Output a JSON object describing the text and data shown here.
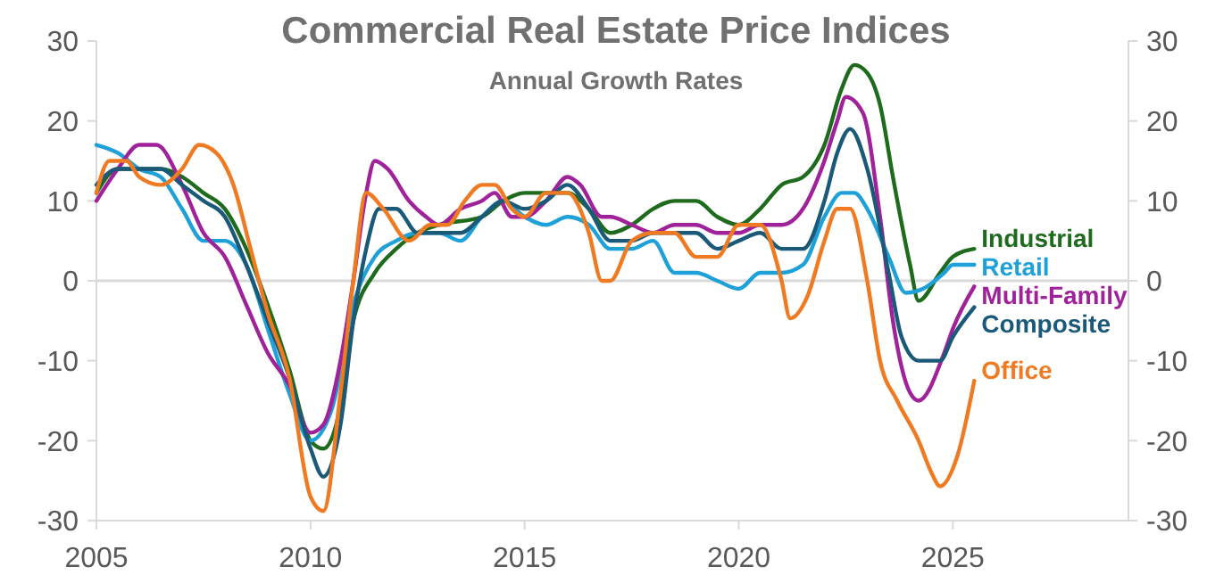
{
  "chart_data": {
    "type": "line",
    "title": "Commercial Real Estate Price Indices",
    "subtitle": "Annual Growth Rates",
    "xlim": [
      2005,
      2029.1
    ],
    "xticks": [
      2005,
      2010,
      2015,
      2020,
      2025
    ],
    "ylim": [
      -30,
      30
    ],
    "yticks": [
      -30,
      -20,
      -10,
      0,
      10,
      20,
      30
    ],
    "y2lim": [
      -30,
      30
    ],
    "y2ticks": [
      -30,
      -20,
      -10,
      0,
      10,
      20,
      30
    ],
    "ref_lines": [
      {
        "axis": "y",
        "value": 0,
        "color": "#d9d9d9"
      }
    ],
    "line_style": "solid",
    "marker": "none",
    "grid": false,
    "series": [
      {
        "name": "Industrial",
        "color": "#1e6b1e",
        "x": [
          2005,
          2005.5,
          2006,
          2006.5,
          2007,
          2007.5,
          2008,
          2008.5,
          2009,
          2009.5,
          2010,
          2010.3,
          2010.6,
          2011,
          2011.5,
          2012,
          2012.5,
          2013,
          2014,
          2014.5,
          2015,
          2015.5,
          2016,
          2016.5,
          2017,
          2017.5,
          2018,
          2018.5,
          2019,
          2019.5,
          2020,
          2020.5,
          2021,
          2021.5,
          2022,
          2022.4,
          2022.7,
          2023,
          2023.3,
          2023.6,
          2024,
          2024.2,
          2024.7,
          2025,
          2025.5
        ],
        "values": [
          11,
          14,
          14,
          14,
          13,
          11,
          9,
          4,
          -3,
          -11,
          -20,
          -21,
          -18,
          -5,
          1,
          4,
          6,
          7,
          8,
          10,
          11,
          11,
          11,
          9,
          6,
          7,
          9,
          10,
          10,
          8,
          7,
          9,
          12,
          13,
          17,
          24,
          27,
          26,
          22,
          13,
          2,
          -2.5,
          1,
          3,
          4
        ]
      },
      {
        "name": "Retail",
        "color": "#1ea0d8",
        "x": [
          2005,
          2005.5,
          2006,
          2006.5,
          2007,
          2007.5,
          2008,
          2008.5,
          2009,
          2009.5,
          2010,
          2010.5,
          2011,
          2011.5,
          2012,
          2012.5,
          2013,
          2013.5,
          2014,
          2014.5,
          2015,
          2015.5,
          2016,
          2016.5,
          2017,
          2017.5,
          2018,
          2018.5,
          2019,
          2019.5,
          2020,
          2020.5,
          2021,
          2021.5,
          2022,
          2022.4,
          2022.7,
          2023,
          2023.5,
          2023.9,
          2024.3,
          2024.8,
          2025,
          2025.5
        ],
        "values": [
          17,
          16,
          14,
          13,
          9,
          5,
          5,
          2,
          -6,
          -14,
          -20,
          -16,
          -3,
          3,
          5,
          6,
          6,
          5,
          8,
          10,
          8,
          7,
          8,
          7,
          4,
          4,
          5,
          1,
          1,
          0,
          -1,
          1,
          1,
          2,
          8,
          11,
          11,
          9,
          3,
          -1.5,
          -1,
          1,
          2,
          2
        ]
      },
      {
        "name": "Multi-Family",
        "color": "#a0229a",
        "x": [
          2005,
          2005.5,
          2006,
          2006.4,
          2007,
          2007.5,
          2008,
          2008.5,
          2009,
          2009.5,
          2010,
          2010.3,
          2010.7,
          2011,
          2011.3,
          2011.5,
          2011.8,
          2012.3,
          2012.7,
          2013,
          2013.5,
          2014,
          2014.3,
          2014.7,
          2015,
          2015.5,
          2016,
          2016.3,
          2016.8,
          2017,
          2017.5,
          2018,
          2018.5,
          2019,
          2019.5,
          2020,
          2020.5,
          2021,
          2021.5,
          2022,
          2022.3,
          2022.5,
          2022.9,
          2023.3,
          2023.6,
          2024,
          2024.2,
          2024.8,
          2025,
          2025.5
        ],
        "values": [
          10,
          14,
          17,
          17,
          12,
          6,
          3,
          -3,
          -9,
          -13,
          -19,
          -18,
          -10,
          0,
          11,
          15,
          14,
          10,
          8,
          7,
          9,
          10,
          11,
          8,
          8,
          10,
          13,
          12,
          8,
          8,
          7,
          6,
          7,
          7,
          6,
          6,
          7,
          7,
          9,
          15,
          20,
          23,
          21,
          8,
          -5,
          -14,
          -15,
          -9,
          -6,
          -0.7
        ]
      },
      {
        "name": "Composite",
        "color": "#1a5a78",
        "x": [
          2005,
          2005.5,
          2006,
          2006.5,
          2007,
          2007.5,
          2008,
          2008.5,
          2009,
          2009.5,
          2010,
          2010.3,
          2010.7,
          2011,
          2011.3,
          2011.6,
          2012,
          2012.5,
          2013,
          2013.5,
          2014,
          2014.5,
          2015,
          2015.5,
          2016,
          2016.5,
          2017,
          2017.5,
          2018,
          2018.5,
          2019,
          2019.5,
          2020,
          2020.5,
          2021,
          2021.5,
          2022,
          2022.3,
          2022.6,
          2023,
          2023.5,
          2023.8,
          2024.2,
          2024.7,
          2025,
          2025.5
        ],
        "values": [
          12,
          14,
          14,
          14,
          12,
          10,
          8,
          2,
          -5,
          -12,
          -21,
          -24.5,
          -18,
          -5,
          4,
          9,
          9,
          6,
          6,
          6,
          8,
          10,
          9,
          10,
          12,
          9,
          5,
          5,
          6,
          6,
          6,
          4,
          5,
          6,
          4,
          4,
          10,
          16,
          19,
          14,
          1,
          -7,
          -10,
          -10,
          -7,
          -3.3
        ]
      },
      {
        "name": "Office",
        "color": "#f07a22",
        "x": [
          2005,
          2005.3,
          2005.7,
          2006,
          2006.5,
          2007,
          2007.4,
          2007.8,
          2008.2,
          2008.6,
          2009,
          2009.5,
          2010,
          2010.3,
          2010.7,
          2011,
          2011.3,
          2011.7,
          2012.3,
          2012.8,
          2013.2,
          2013.6,
          2014,
          2014.3,
          2014.7,
          2015,
          2015.5,
          2016,
          2016.5,
          2016.8,
          2017,
          2017.5,
          2018,
          2018.5,
          2019,
          2019.5,
          2020,
          2020.5,
          2021,
          2021.2,
          2021.6,
          2022,
          2022.3,
          2022.6,
          2023,
          2023.3,
          2023.7,
          2024.2,
          2024.5,
          2024.7,
          2025.1,
          2025.5
        ],
        "values": [
          11,
          15,
          15,
          13,
          12,
          14,
          17,
          16,
          12,
          4,
          -4,
          -12,
          -27,
          -28.8,
          -14,
          0,
          11,
          9,
          5,
          7,
          7,
          10,
          12,
          12,
          9,
          8,
          11,
          11,
          6,
          0,
          0,
          5,
          6,
          6,
          3,
          3,
          7,
          7,
          0,
          -4.7,
          -2,
          5,
          9,
          9,
          0,
          -10,
          -15,
          -20,
          -24,
          -25.7,
          -22,
          -12.5
        ]
      }
    ]
  }
}
